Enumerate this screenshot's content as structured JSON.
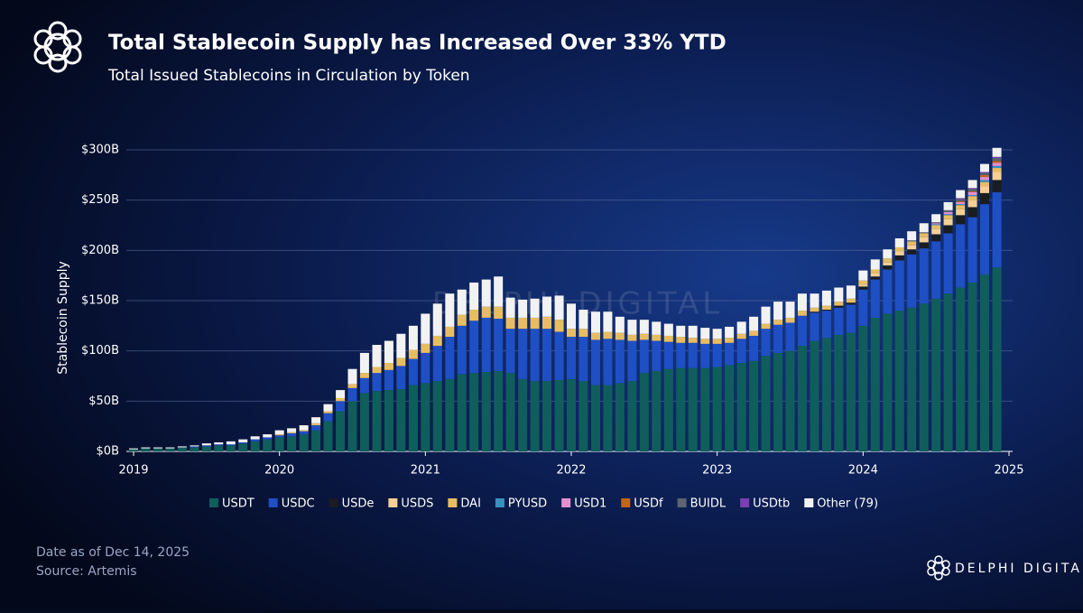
{
  "chart_data": {
    "type": "stacked_bar",
    "title": "Total Stablecoin Supply has Increased Over 33% YTD",
    "subtitle": "Total Issued Stablecoins in Circulation by Token",
    "y_label": "Stablecoin Supply",
    "watermark": "DELPHI DIGITAL",
    "footer": [
      "Date as of Dec 14, 2025",
      "Source: Artemis"
    ],
    "brand": "DELPHI DIGITAL",
    "xlim": [
      2019,
      2025
    ],
    "xticks": [
      2019,
      2020,
      2021,
      2022,
      2023,
      2024,
      2025
    ],
    "ylim": [
      0,
      300
    ],
    "yticks": [
      {
        "value": 0,
        "label": "$0B"
      },
      {
        "value": 50,
        "label": "$50B"
      },
      {
        "value": 100,
        "label": "$100B"
      },
      {
        "value": 150,
        "label": "$150B"
      },
      {
        "value": 200,
        "label": "$200B"
      },
      {
        "value": 250,
        "label": "$250B"
      },
      {
        "value": 300,
        "label": "$300B"
      }
    ],
    "grid": true,
    "x": [
      2019,
      2019.083,
      2019.167,
      2019.25,
      2019.333,
      2019.417,
      2019.5,
      2019.583,
      2019.667,
      2019.75,
      2019.833,
      2019.917,
      2020,
      2020.083,
      2020.167,
      2020.25,
      2020.333,
      2020.417,
      2020.5,
      2020.583,
      2020.667,
      2020.75,
      2020.833,
      2020.917,
      2021,
      2021.083,
      2021.167,
      2021.25,
      2021.333,
      2021.417,
      2021.5,
      2021.583,
      2021.667,
      2021.75,
      2021.833,
      2021.917,
      2022,
      2022.083,
      2022.167,
      2022.25,
      2022.333,
      2022.417,
      2022.5,
      2022.583,
      2022.667,
      2022.75,
      2022.833,
      2022.917,
      2023,
      2023.083,
      2023.167,
      2023.25,
      2023.333,
      2023.417,
      2023.5,
      2023.583,
      2023.667,
      2023.75,
      2023.833,
      2023.917,
      2024,
      2024.083,
      2024.167,
      2024.25,
      2024.333,
      2024.417,
      2024.5,
      2024.583,
      2024.667,
      2024.75,
      2024.833,
      2024.917
    ],
    "series": [
      {
        "name": "USDT",
        "color": "#0f5e5c",
        "values": [
          2,
          3,
          3,
          3,
          4,
          4,
          5,
          6,
          6,
          8,
          10,
          12,
          14,
          15,
          17,
          21,
          30,
          40,
          50,
          58,
          60,
          61,
          62,
          66,
          68,
          70,
          72,
          77,
          78,
          79,
          80,
          78,
          72,
          70,
          70,
          71,
          72,
          70,
          66,
          66,
          68,
          70,
          78,
          80,
          82,
          83,
          83,
          83,
          84,
          86,
          88,
          90,
          95,
          98,
          100,
          105,
          110,
          113,
          116,
          118,
          125,
          133,
          137,
          140,
          143,
          147,
          152,
          157,
          163,
          168,
          176,
          183
        ]
      },
      {
        "name": "USDC",
        "color": "#1f4fc4",
        "values": [
          0,
          0,
          0,
          0,
          0,
          1,
          1,
          1,
          1,
          1,
          2,
          2,
          2,
          3,
          3,
          5,
          8,
          10,
          13,
          15,
          18,
          20,
          23,
          26,
          30,
          35,
          42,
          48,
          52,
          54,
          52,
          44,
          50,
          52,
          52,
          48,
          42,
          44,
          45,
          46,
          43,
          40,
          33,
          30,
          27,
          25,
          25,
          24,
          23,
          22,
          24,
          25,
          27,
          28,
          28,
          30,
          28,
          27,
          27,
          28,
          36,
          38,
          44,
          50,
          53,
          55,
          57,
          60,
          63,
          65,
          70,
          75
        ]
      },
      {
        "name": "USDe",
        "color": "#1a1c22",
        "values": [
          0,
          0,
          0,
          0,
          0,
          0,
          0,
          0,
          0,
          0,
          0,
          0,
          0,
          0,
          0,
          0,
          0,
          0,
          0,
          0,
          0,
          0,
          0,
          0,
          0,
          0,
          0,
          0,
          0,
          0,
          0,
          0,
          0,
          0,
          0,
          0,
          0,
          0,
          0,
          0,
          0,
          0,
          0,
          0,
          0,
          0,
          0,
          0,
          0,
          0,
          0,
          0,
          0,
          0,
          0,
          0,
          1,
          1,
          2,
          2,
          3,
          3,
          4,
          5,
          5,
          6,
          7,
          8,
          9,
          10,
          11,
          12
        ]
      },
      {
        "name": "USDS",
        "color": "#f5cf95",
        "values": [
          0,
          0,
          0,
          0,
          0,
          0,
          0,
          0,
          0,
          0,
          0,
          0,
          0,
          0,
          0,
          0,
          0,
          0,
          0,
          0,
          0,
          0,
          0,
          0,
          0,
          0,
          0,
          0,
          0,
          0,
          0,
          0,
          0,
          0,
          0,
          0,
          0,
          0,
          0,
          0,
          0,
          0,
          0,
          0,
          0,
          0,
          0,
          0,
          0,
          0,
          0,
          0,
          0,
          0,
          0,
          0,
          0,
          0,
          0,
          0,
          2,
          3,
          3,
          4,
          4,
          5,
          5,
          6,
          6,
          7,
          7,
          8
        ]
      },
      {
        "name": "DAI",
        "color": "#e8bd62",
        "values": [
          0,
          0,
          0,
          0,
          0,
          0,
          0,
          0,
          0,
          0,
          0,
          0,
          1,
          1,
          1,
          2,
          2,
          3,
          4,
          5,
          6,
          7,
          8,
          9,
          9,
          10,
          10,
          11,
          11,
          11,
          12,
          11,
          11,
          11,
          12,
          12,
          8,
          8,
          7,
          7,
          7,
          6,
          6,
          6,
          6,
          6,
          5,
          5,
          5,
          5,
          5,
          5,
          5,
          5,
          5,
          5,
          4,
          4,
          4,
          4,
          4,
          4,
          4,
          4,
          4,
          4,
          4,
          4,
          4,
          4,
          4,
          4
        ]
      },
      {
        "name": "PYUSD",
        "color": "#3a8fc0",
        "values": [
          0,
          0,
          0,
          0,
          0,
          0,
          0,
          0,
          0,
          0,
          0,
          0,
          0,
          0,
          0,
          0,
          0,
          0,
          0,
          0,
          0,
          0,
          0,
          0,
          0,
          0,
          0,
          0,
          0,
          0,
          0,
          0,
          0,
          0,
          0,
          0,
          0,
          0,
          0,
          0,
          0,
          0,
          0,
          0,
          0,
          0,
          0,
          0,
          0,
          0,
          0,
          0,
          0,
          0,
          0,
          0,
          0,
          0,
          0,
          0,
          0,
          0,
          0,
          0,
          0,
          0,
          1,
          1,
          1,
          1,
          2,
          2
        ]
      },
      {
        "name": "USD1",
        "color": "#e48fd2",
        "values": [
          0,
          0,
          0,
          0,
          0,
          0,
          0,
          0,
          0,
          0,
          0,
          0,
          0,
          0,
          0,
          0,
          0,
          0,
          0,
          0,
          0,
          0,
          0,
          0,
          0,
          0,
          0,
          0,
          0,
          0,
          0,
          0,
          0,
          0,
          0,
          0,
          0,
          0,
          0,
          0,
          0,
          0,
          0,
          0,
          0,
          0,
          0,
          0,
          0,
          0,
          0,
          0,
          0,
          0,
          0,
          0,
          0,
          0,
          0,
          0,
          0,
          0,
          0,
          0,
          0,
          0,
          1,
          2,
          2,
          3,
          3,
          3
        ]
      },
      {
        "name": "USDf",
        "color": "#c0661a",
        "values": [
          0,
          0,
          0,
          0,
          0,
          0,
          0,
          0,
          0,
          0,
          0,
          0,
          0,
          0,
          0,
          0,
          0,
          0,
          0,
          0,
          0,
          0,
          0,
          0,
          0,
          0,
          0,
          0,
          0,
          0,
          0,
          0,
          0,
          0,
          0,
          0,
          0,
          0,
          0,
          0,
          0,
          0,
          0,
          0,
          0,
          0,
          0,
          0,
          0,
          0,
          0,
          0,
          0,
          0,
          0,
          0,
          0,
          0,
          0,
          0,
          0,
          0,
          0,
          0,
          0,
          0,
          0,
          0,
          1,
          1,
          2,
          2
        ]
      },
      {
        "name": "BUIDL",
        "color": "#5b6470",
        "values": [
          0,
          0,
          0,
          0,
          0,
          0,
          0,
          0,
          0,
          0,
          0,
          0,
          0,
          0,
          0,
          0,
          0,
          0,
          0,
          0,
          0,
          0,
          0,
          0,
          0,
          0,
          0,
          0,
          0,
          0,
          0,
          0,
          0,
          0,
          0,
          0,
          0,
          0,
          0,
          0,
          0,
          0,
          0,
          0,
          0,
          0,
          0,
          0,
          0,
          0,
          0,
          0,
          0,
          0,
          0,
          0,
          0,
          0,
          0,
          0,
          0,
          0,
          0,
          0,
          1,
          1,
          1,
          2,
          2,
          2,
          2,
          3
        ]
      },
      {
        "name": "USDtb",
        "color": "#7a3fb0",
        "values": [
          0,
          0,
          0,
          0,
          0,
          0,
          0,
          0,
          0,
          0,
          0,
          0,
          0,
          0,
          0,
          0,
          0,
          0,
          0,
          0,
          0,
          0,
          0,
          0,
          0,
          0,
          0,
          0,
          0,
          0,
          0,
          0,
          0,
          0,
          0,
          0,
          0,
          0,
          0,
          0,
          0,
          0,
          0,
          0,
          0,
          0,
          0,
          0,
          0,
          0,
          0,
          0,
          0,
          0,
          0,
          0,
          0,
          0,
          0,
          0,
          0,
          0,
          0,
          0,
          0,
          0,
          0,
          0,
          1,
          1,
          1,
          1
        ]
      },
      {
        "name": "Other (79)",
        "color": "#f2f2f2",
        "values": [
          1,
          1,
          1,
          1,
          1,
          1,
          2,
          2,
          3,
          3,
          3,
          3,
          4,
          4,
          5,
          6,
          7,
          8,
          15,
          20,
          22,
          22,
          24,
          24,
          30,
          32,
          33,
          25,
          27,
          27,
          30,
          20,
          18,
          19,
          20,
          24,
          25,
          19,
          21,
          20,
          16,
          15,
          14,
          13,
          12,
          11,
          12,
          11,
          10,
          11,
          12,
          14,
          17,
          18,
          16,
          17,
          14,
          15,
          14,
          13,
          10,
          10,
          9,
          9,
          9,
          9,
          8,
          8,
          8,
          8,
          8,
          9
        ]
      }
    ]
  }
}
